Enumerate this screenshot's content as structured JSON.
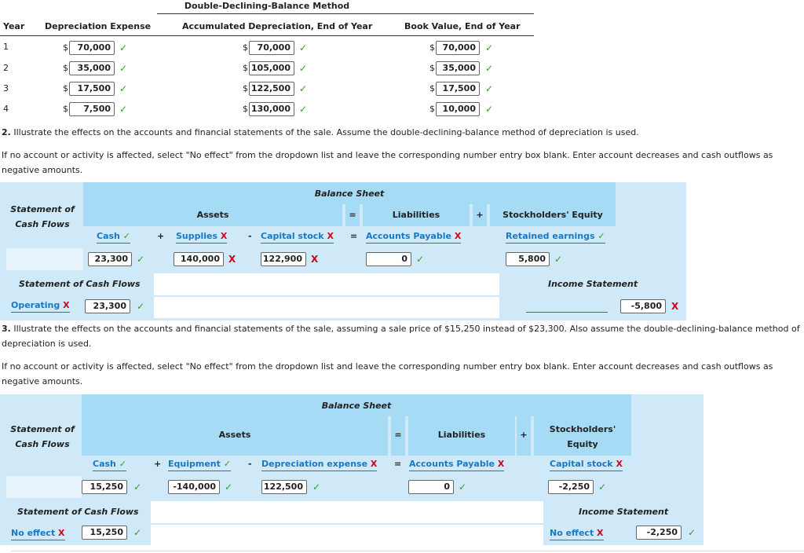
{
  "depr_table": {
    "title": "Double-Declining-Balance Method",
    "headers": [
      "Year",
      "Depreciation Expense",
      "Accumulated Depreciation, End of Year",
      "Book Value, End of Year"
    ],
    "currency": "$",
    "rows": [
      {
        "year": "1",
        "expense": "70,000",
        "accum": "70,000",
        "book": "70,000"
      },
      {
        "year": "2",
        "expense": "35,000",
        "accum": "105,000",
        "book": "35,000"
      },
      {
        "year": "3",
        "expense": "17,500",
        "accum": "122,500",
        "book": "17,500"
      },
      {
        "year": "4",
        "expense": "7,500",
        "accum": "130,000",
        "book": "10,000"
      }
    ]
  },
  "q2": {
    "number": "2.",
    "prompt": "Illustrate the effects on the accounts and financial statements of the sale. Assume the double-declining-balance method of depreciation is used.",
    "instructions": "If no account or activity is affected, select \"No effect\" from the dropdown list and leave the corresponding number entry box blank. Enter account decreases and cash outflows as negative amounts.",
    "balance_sheet": "Balance Sheet",
    "scf_header": "Statement of Cash Flows",
    "assets": "Assets",
    "liabilities": "Liabilities",
    "equity": "Stockholders' Equity",
    "accounts": {
      "a1": "Cash",
      "a2": "Supplies",
      "a3": "Capital stock",
      "l1": "Accounts Payable",
      "e1": "Retained earnings"
    },
    "values": {
      "a1": "23,300",
      "a2": "140,000",
      "a3": "122,900",
      "l1": "0",
      "e1": "5,800"
    },
    "scf_label": "Statement of Cash Flows",
    "is_label": "Income Statement",
    "scf_activity": "Operating",
    "scf_value": "23,300",
    "is_value": "-5,800"
  },
  "q3": {
    "number": "3.",
    "prompt_line1": "Illustrate the effects on the accounts and financial statements of the sale, assuming a sale price of $15,250 instead of $23,300. Also assume the double-declining-balance method of",
    "prompt_line2": "depreciation is used.",
    "instructions": "If no account or activity is affected, select \"No effect\" from the dropdown list and leave the corresponding number entry box blank. Enter account decreases and cash outflows as negative amounts.",
    "balance_sheet": "Balance Sheet",
    "scf_header": "Statement of Cash Flows",
    "assets": "Assets",
    "liabilities": "Liabilities",
    "equity": "Stockholders' Equity",
    "accounts": {
      "a1": "Cash",
      "a2": "Equipment",
      "a3": "Depreciation expense",
      "l1": "Accounts Payable",
      "e1": "Capital stock"
    },
    "values": {
      "a1": "15,250",
      "a2": "-140,000",
      "a3": "122,500",
      "l1": "0",
      "e1": "-2,250"
    },
    "scf_label": "Statement of Cash Flows",
    "is_label": "Income Statement",
    "scf_activity": "No effect",
    "scf_value": "15,250",
    "is_account": "No effect",
    "is_value": "-2,250"
  },
  "colors": {
    "panel": "#cfe9f8",
    "header": "#a6dbf5",
    "correct": "#3a9a2a",
    "incorrect": "#d0021b",
    "link": "#1a78c2"
  },
  "icons": {
    "correct": "check-icon",
    "incorrect": "x-icon"
  },
  "symbols": {
    "plus": "+",
    "minus": "-",
    "equals": "="
  },
  "marks": {
    "check": "✓",
    "cross": "X"
  }
}
